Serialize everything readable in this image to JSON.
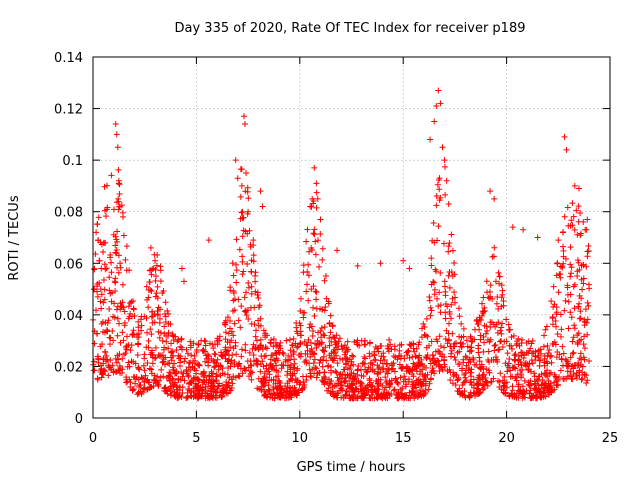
{
  "chart_data": {
    "type": "scatter",
    "title": "Day 335 of 2020, Rate Of TEC Index for receiver p189",
    "xlabel": "GPS time / hours",
    "ylabel": "ROTI / TECUs",
    "xlim": [
      0,
      25
    ],
    "ylim": [
      0,
      0.14
    ],
    "x_ticks": [
      "0",
      "5",
      "10",
      "15",
      "20",
      "25"
    ],
    "y_ticks": [
      "0",
      "0.02",
      "0.04",
      "0.06",
      "0.08",
      "0.1",
      "0.12",
      "0.14"
    ],
    "grid": true,
    "marker": "+",
    "color": "#ff0000",
    "series": [
      {
        "x": [
          0.05,
          0.15,
          0.25,
          0.3,
          0.4,
          1.1,
          1.15,
          1.2,
          1.25,
          1.3,
          1.45,
          2.8,
          3.0,
          4.3,
          4.4,
          5.6,
          6.9,
          7.0,
          7.2,
          7.3,
          7.35,
          7.4,
          7.5,
          8.1,
          8.2,
          10.5,
          10.6,
          10.7,
          10.8,
          11.0,
          11.8,
          12.8,
          13.9,
          15.0,
          15.3,
          16.3,
          16.5,
          16.6,
          16.7,
          16.8,
          16.9,
          17.0,
          17.1,
          17.2,
          19.2,
          19.4,
          20.3,
          20.8,
          21.5,
          22.5,
          22.8,
          22.9,
          23.3,
          23.5,
          23.8,
          23.9
        ],
        "y": [
          0.05,
          0.072,
          0.069,
          0.061,
          0.058,
          0.114,
          0.11,
          0.105,
          0.092,
          0.082,
          0.078,
          0.066,
          0.061,
          0.058,
          0.053,
          0.069,
          0.1,
          0.093,
          0.09,
          0.117,
          0.114,
          0.095,
          0.08,
          0.088,
          0.082,
          0.082,
          0.085,
          0.097,
          0.091,
          0.077,
          0.065,
          0.059,
          0.06,
          0.061,
          0.058,
          0.108,
          0.115,
          0.121,
          0.127,
          0.122,
          0.105,
          0.1,
          0.092,
          0.083,
          0.088,
          0.085,
          0.074,
          0.073,
          0.07,
          0.069,
          0.109,
          0.104,
          0.09,
          0.089,
          0.073,
          0.077
        ]
      }
    ]
  }
}
